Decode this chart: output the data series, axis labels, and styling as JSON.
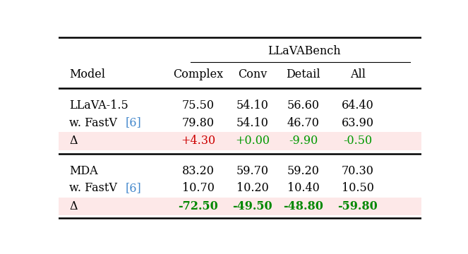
{
  "title": "LLaVABench",
  "section1": {
    "rows": [
      {
        "label": "LLaVA-1.5",
        "values": [
          "75.50",
          "54.10",
          "56.60",
          "64.40"
        ],
        "label_color": "#000000",
        "value_colors": [
          "#000000",
          "#000000",
          "#000000",
          "#000000"
        ],
        "bg": null,
        "label_ref": false,
        "bold_values": false
      },
      {
        "label": "w. FastV [6]",
        "values": [
          "79.80",
          "54.10",
          "46.70",
          "63.90"
        ],
        "label_color": "#000000",
        "value_colors": [
          "#000000",
          "#000000",
          "#000000",
          "#000000"
        ],
        "bg": null,
        "label_ref": true,
        "bold_values": false
      },
      {
        "label": "Δ",
        "values": [
          "+4.30",
          "+0.00",
          "-9.90",
          "-0.50"
        ],
        "label_color": "#000000",
        "value_colors": [
          "#cc0000",
          "#009900",
          "#009900",
          "#009900"
        ],
        "bg": "#fde8e8",
        "label_ref": false,
        "bold_values": false
      }
    ]
  },
  "section2": {
    "rows": [
      {
        "label": "MDA",
        "values": [
          "83.20",
          "59.70",
          "59.20",
          "70.30"
        ],
        "label_color": "#000000",
        "value_colors": [
          "#000000",
          "#000000",
          "#000000",
          "#000000"
        ],
        "bg": null,
        "label_ref": false,
        "bold_values": false
      },
      {
        "label": "w. FastV [6]",
        "values": [
          "10.70",
          "10.20",
          "10.40",
          "10.50"
        ],
        "label_color": "#000000",
        "value_colors": [
          "#000000",
          "#000000",
          "#000000",
          "#000000"
        ],
        "bg": null,
        "label_ref": true,
        "bold_values": false
      },
      {
        "label": "Δ",
        "values": [
          "-72.50",
          "-49.50",
          "-48.80",
          "-59.80"
        ],
        "label_color": "#000000",
        "value_colors": [
          "#008800",
          "#008800",
          "#008800",
          "#008800"
        ],
        "bg": "#fde8e8",
        "label_ref": false,
        "bold_values": true
      }
    ]
  },
  "ref_color": "#4488cc",
  "figsize": [
    6.63,
    3.6
  ],
  "dpi": 100
}
